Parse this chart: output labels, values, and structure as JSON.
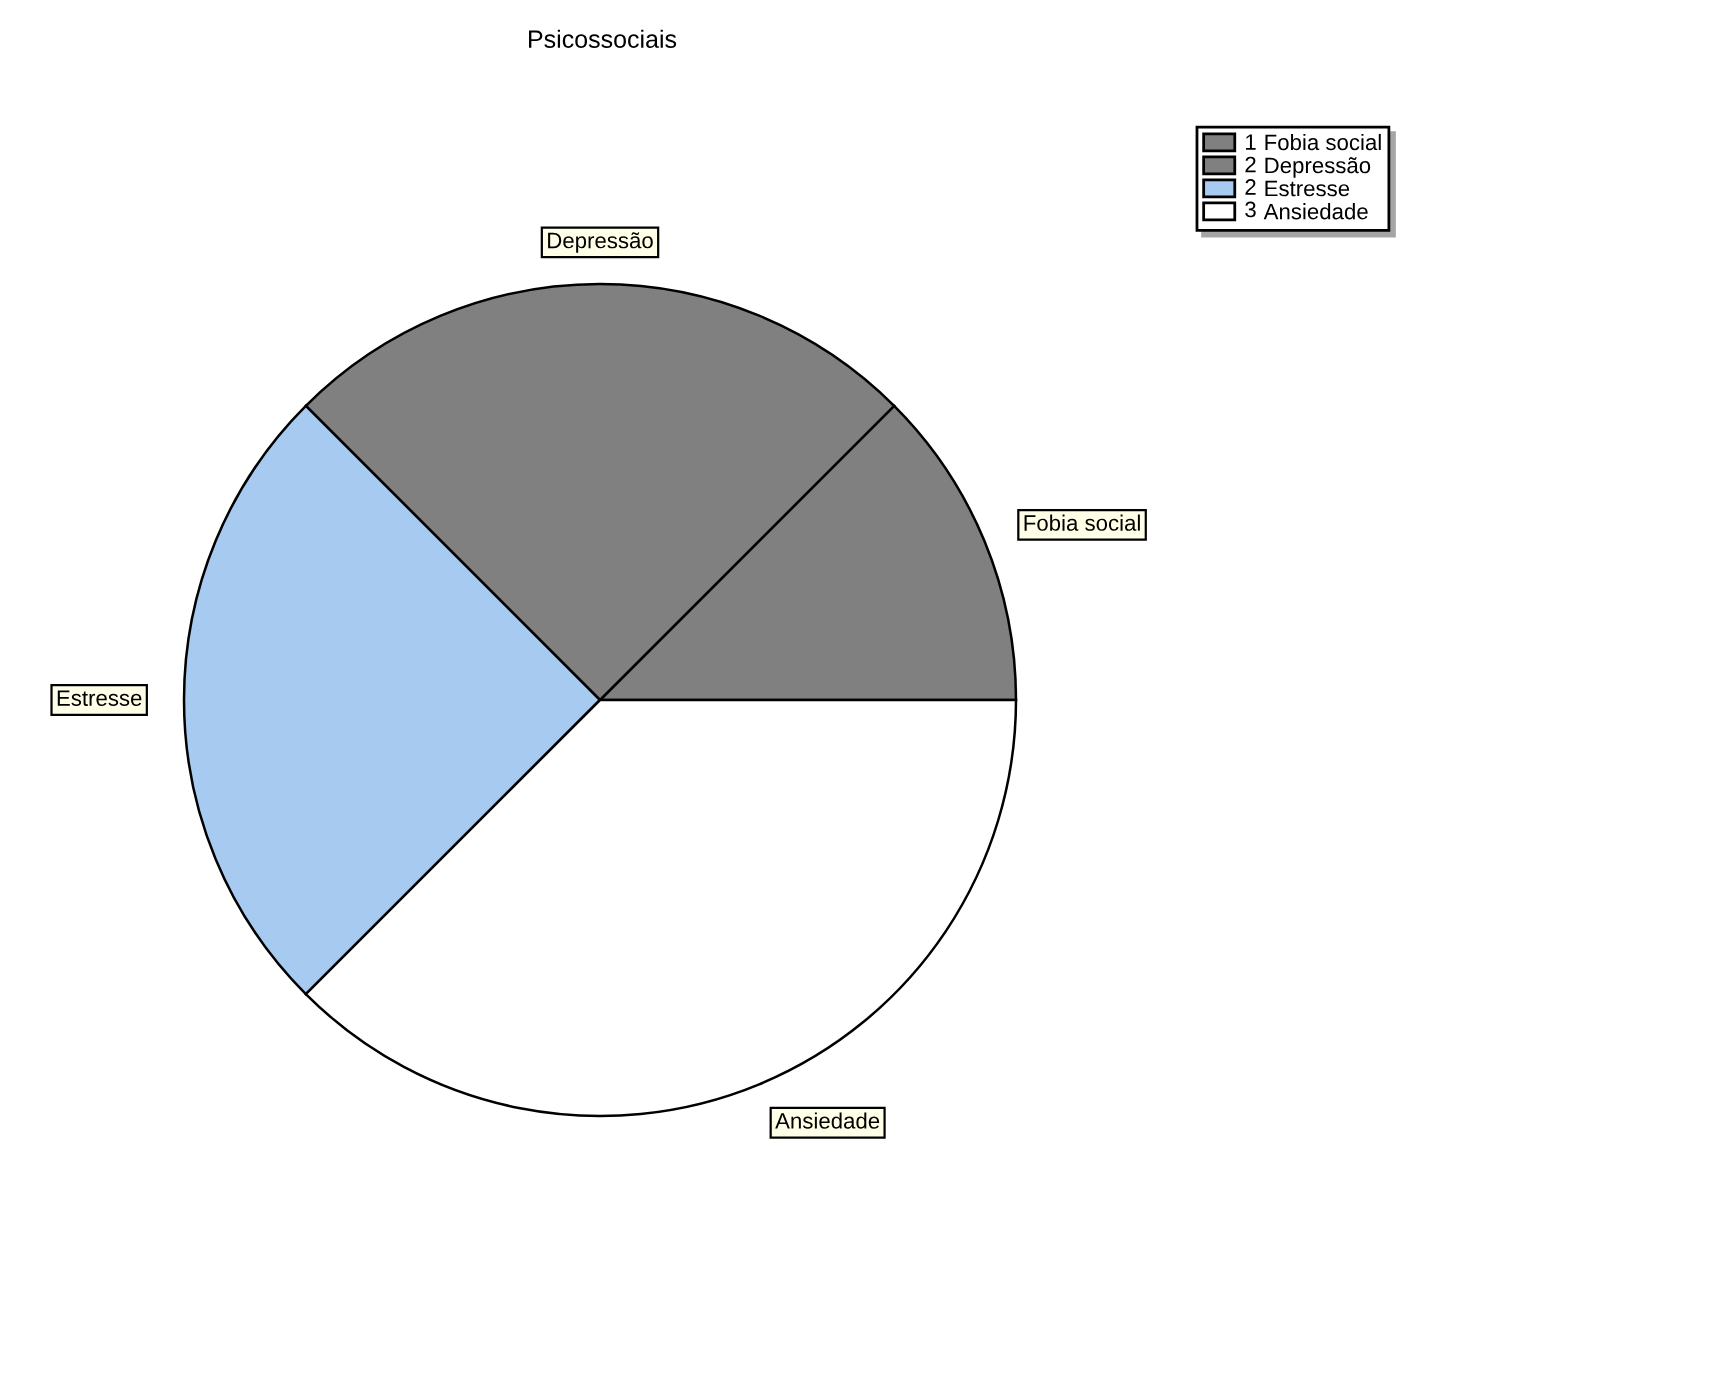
{
  "chart_data": {
    "type": "pie",
    "title": "Psicossociais",
    "categories": [
      "Fobia social",
      "Depressão",
      "Estresse",
      "Ansiedade"
    ],
    "values": [
      1,
      2,
      2,
      3
    ],
    "value_labels": [
      "1",
      "2",
      "2",
      "3"
    ],
    "colors": [
      "#808080",
      "#808080",
      "#a6caf0",
      "#ffffff"
    ],
    "legend": "top right"
  }
}
